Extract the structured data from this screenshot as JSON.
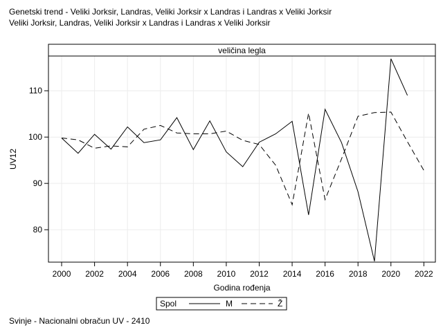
{
  "title_lines": [
    "Genetski trend - Veliki Jorksir, Landras, Veliki Jorksir x Landras i Landras x Veliki Jorksir",
    "Veliki Jorksir, Landras, Veliki Jorksir x Landras i Landras x Veliki Jorksir"
  ],
  "footnote": "Svinje - Nacionalni obračun UV - 2410",
  "chart_data": {
    "type": "line",
    "panel_header": "veličina legla",
    "xlabel": "Godina rođenja",
    "ylabel": "UV12",
    "xlim": [
      1999.2,
      2022.7
    ],
    "ylim": [
      73,
      117.5
    ],
    "x_ticks": [
      2000,
      2002,
      2004,
      2006,
      2008,
      2010,
      2012,
      2014,
      2016,
      2018,
      2020,
      2022
    ],
    "y_ticks": [
      80,
      90,
      100,
      110
    ],
    "grid": true,
    "legend": {
      "title": "Spol",
      "position": "bottom-center"
    },
    "series": [
      {
        "name": "M",
        "line_style": "solid",
        "x": [
          2000,
          2001,
          2002,
          2003,
          2004,
          2005,
          2006,
          2007,
          2008,
          2009,
          2010,
          2011,
          2012,
          2013,
          2014,
          2015,
          2016,
          2017,
          2018,
          2019,
          2020,
          2021
        ],
        "y": [
          99.8,
          96.5,
          100.6,
          97.4,
          102.2,
          98.8,
          99.4,
          104.2,
          97.3,
          103.5,
          96.8,
          93.6,
          98.9,
          100.7,
          103.4,
          83.2,
          106.0,
          98.8,
          88.2,
          73.2,
          116.9,
          109.0
        ]
      },
      {
        "name": "Ž",
        "line_style": "dashed",
        "x": [
          2000,
          2001,
          2002,
          2003,
          2004,
          2005,
          2006,
          2007,
          2008,
          2009,
          2010,
          2011,
          2012,
          2013,
          2014,
          2015,
          2016,
          2017,
          2018,
          2019,
          2020,
          2021,
          2022
        ],
        "y": [
          99.8,
          99.4,
          97.6,
          98.1,
          97.9,
          101.7,
          102.5,
          100.9,
          100.7,
          100.7,
          101.3,
          99.3,
          98.4,
          93.9,
          85.4,
          105.2,
          86.5,
          95.3,
          104.5,
          105.3,
          105.4,
          99.0,
          92.8
        ]
      }
    ]
  }
}
